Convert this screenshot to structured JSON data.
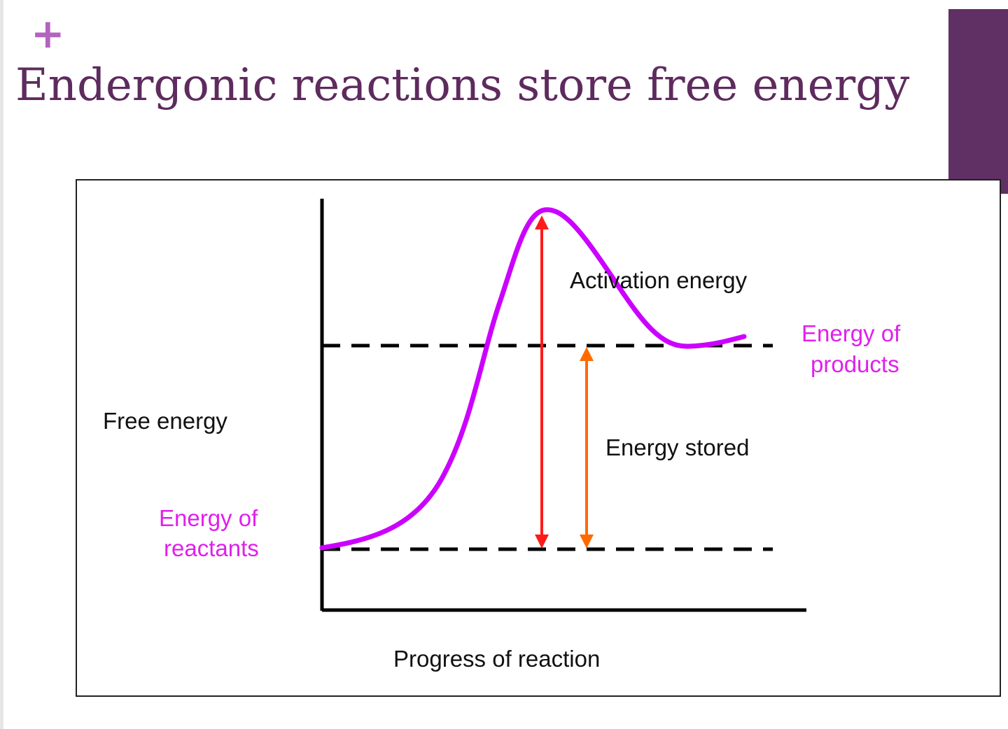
{
  "slide": {
    "plus_glyph": "+",
    "title": "Endergonic reactions store free energy"
  },
  "diagram": {
    "y_axis_label": "Free energy",
    "x_axis_label": "Progress of reaction",
    "reactants_label_line1": "Energy of",
    "reactants_label_line2": "reactants",
    "products_label_line1": "Energy of",
    "products_label_line2": "products",
    "activation_label": "Activation energy",
    "stored_label": "Energy stored"
  },
  "colors": {
    "title": "#5e2b5e",
    "accent_plus": "#b463c0",
    "corner_block": "#602f63",
    "curve": "#cc00ff",
    "activation_arrow": "#ff1a1a",
    "stored_arrow": "#ff6a00",
    "energy_level_labels": "#e020ec"
  }
}
